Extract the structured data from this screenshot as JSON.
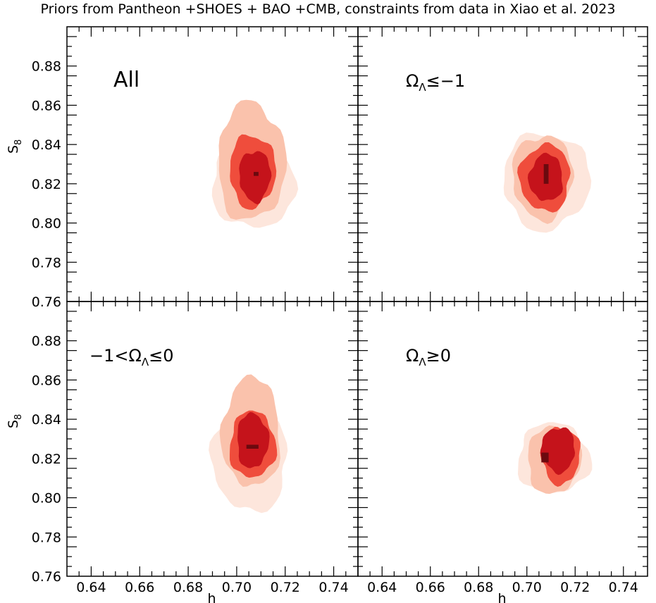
{
  "title": "Priors from Pantheon +SHOES + BAO +CMB, constraints from data in Xiao et al. 2023",
  "colors": {
    "level1": "#fde6dc",
    "level2": "#fac2ac",
    "level3": "#ef4d3c",
    "level4": "#c5131b",
    "level5": "#6b0a0f"
  },
  "chart_data": [
    {
      "type": "contour",
      "panel_label": "All",
      "xlabel": "",
      "ylabel": "S8",
      "xlim": [
        0.63,
        0.75
      ],
      "ylim": [
        0.76,
        0.9
      ],
      "xticks": [],
      "yticks": [
        "0.76",
        "0.78",
        "0.80",
        "0.82",
        "0.84",
        "0.86",
        "0.88"
      ],
      "peak": {
        "h": 0.708,
        "S8": 0.825
      },
      "levels": [
        {
          "level": 1,
          "h": [
            0.69,
            0.724
          ],
          "S8": [
            0.797,
            0.845
          ]
        },
        {
          "level": 2,
          "h": [
            0.692,
            0.72
          ],
          "S8": [
            0.801,
            0.861
          ]
        },
        {
          "level": 3,
          "h": [
            0.697,
            0.716
          ],
          "S8": [
            0.808,
            0.845
          ]
        },
        {
          "level": 4,
          "h": [
            0.701,
            0.714
          ],
          "S8": [
            0.811,
            0.837
          ]
        },
        {
          "level": 5,
          "h": [
            0.707,
            0.709
          ],
          "S8": [
            0.824,
            0.826
          ]
        }
      ]
    },
    {
      "type": "contour",
      "panel_label": "ΩΛ≤−1",
      "xlabel": "",
      "ylabel": "",
      "xlim": [
        0.63,
        0.75
      ],
      "ylim": [
        0.76,
        0.9
      ],
      "xticks": [],
      "yticks": [],
      "peak": {
        "h": 0.708,
        "S8": 0.826
      },
      "levels": [
        {
          "level": 1,
          "h": [
            0.69,
            0.726
          ],
          "S8": [
            0.797,
            0.846
          ]
        },
        {
          "level": 2,
          "h": [
            0.694,
            0.719
          ],
          "S8": [
            0.802,
            0.845
          ]
        },
        {
          "level": 3,
          "h": [
            0.697,
            0.718
          ],
          "S8": [
            0.806,
            0.84
          ]
        },
        {
          "level": 4,
          "h": [
            0.701,
            0.715
          ],
          "S8": [
            0.811,
            0.835
          ]
        },
        {
          "level": 5,
          "h": [
            0.707,
            0.709
          ],
          "S8": [
            0.82,
            0.83
          ]
        }
      ]
    },
    {
      "type": "contour",
      "panel_label": "−1<ΩΛ≤0",
      "xlabel": "h",
      "ylabel": "S8",
      "xlim": [
        0.63,
        0.75
      ],
      "ylim": [
        0.76,
        0.9
      ],
      "xticks": [
        "0.64",
        "0.66",
        "0.68",
        "0.70",
        "0.72",
        "0.74"
      ],
      "yticks": [
        "0.76",
        "0.78",
        "0.80",
        "0.82",
        "0.84",
        "0.86",
        "0.88"
      ],
      "peak": {
        "h": 0.706,
        "S8": 0.826
      },
      "levels": [
        {
          "level": 1,
          "h": [
            0.69,
            0.721
          ],
          "S8": [
            0.793,
            0.847
          ]
        },
        {
          "level": 2,
          "h": [
            0.694,
            0.718
          ],
          "S8": [
            0.805,
            0.861
          ]
        },
        {
          "level": 3,
          "h": [
            0.697,
            0.716
          ],
          "S8": [
            0.81,
            0.844
          ]
        },
        {
          "level": 4,
          "h": [
            0.7,
            0.713
          ],
          "S8": [
            0.815,
            0.843
          ]
        },
        {
          "level": 5,
          "h": [
            0.704,
            0.709
          ],
          "S8": [
            0.825,
            0.827
          ]
        }
      ]
    },
    {
      "type": "contour",
      "panel_label": "ΩΛ≥0",
      "xlabel": "h",
      "ylabel": "",
      "xlim": [
        0.63,
        0.75
      ],
      "ylim": [
        0.76,
        0.9
      ],
      "xticks": [
        "0.64",
        "0.66",
        "0.68",
        "0.70",
        "0.72",
        "0.74"
      ],
      "yticks": [],
      "peak": {
        "h": 0.707,
        "S8": 0.821
      },
      "levels": [
        {
          "level": 1,
          "h": [
            0.696,
            0.726
          ],
          "S8": [
            0.802,
            0.838
          ]
        },
        {
          "level": 2,
          "h": [
            0.7,
            0.722
          ],
          "S8": [
            0.802,
            0.836
          ]
        },
        {
          "level": 3,
          "h": [
            0.706,
            0.722
          ],
          "S8": [
            0.807,
            0.836
          ]
        },
        {
          "level": 4,
          "h": [
            0.706,
            0.72
          ],
          "S8": [
            0.813,
            0.836
          ]
        },
        {
          "level": 5,
          "h": [
            0.706,
            0.709
          ],
          "S8": [
            0.818,
            0.823
          ]
        }
      ]
    }
  ]
}
